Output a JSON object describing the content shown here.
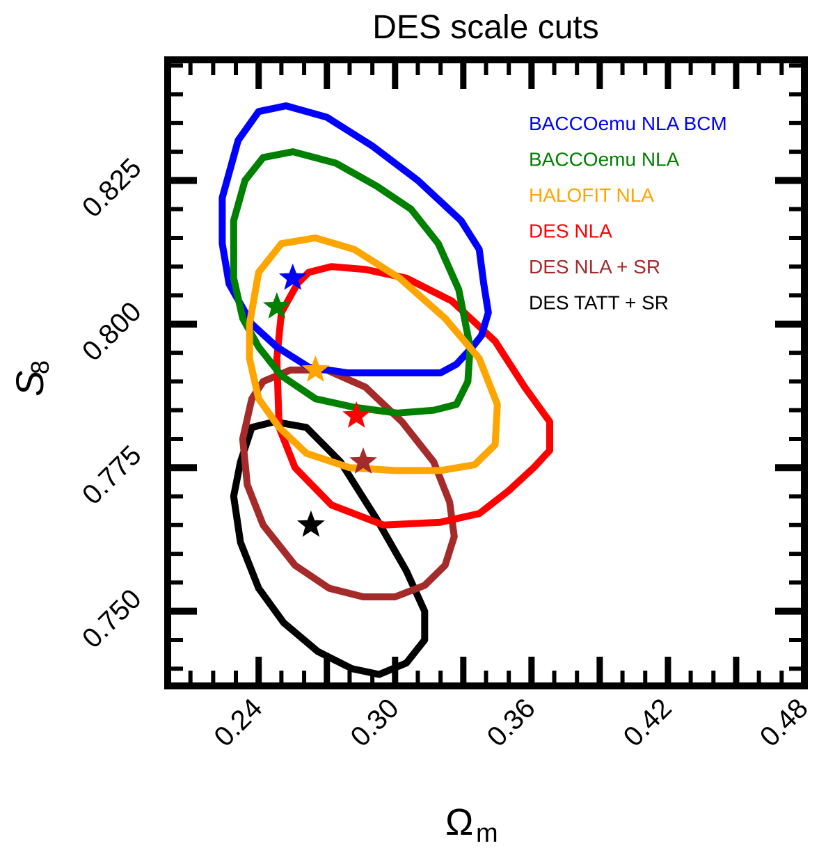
{
  "chart_data": {
    "type": "scatter",
    "title": "DES scale cuts",
    "xlabel": "Ω",
    "xlabel_sub": "m",
    "ylabel": "S",
    "ylabel_sub": "8",
    "xlim": [
      0.2,
      0.48
    ],
    "ylim": [
      0.737,
      0.846
    ],
    "x_ticks": [
      0.24,
      0.3,
      0.36,
      0.42,
      0.48
    ],
    "x_tick_labels": [
      "0.24",
      "0.30",
      "0.36",
      "0.42",
      "0.48"
    ],
    "y_ticks": [
      0.75,
      0.775,
      0.8,
      0.825
    ],
    "y_tick_labels": [
      "0.750",
      "0.775",
      "0.800",
      "0.825"
    ],
    "legend_position": "top-right",
    "grid": false,
    "series": [
      {
        "name": "BACCOemu NLA BCM",
        "color": "#0000ff",
        "best_fit": [
          0.255,
          0.808
        ],
        "contour": [
          [
            0.224,
            0.822
          ],
          [
            0.231,
            0.832
          ],
          [
            0.24,
            0.837
          ],
          [
            0.252,
            0.838
          ],
          [
            0.27,
            0.836
          ],
          [
            0.29,
            0.831
          ],
          [
            0.31,
            0.825
          ],
          [
            0.329,
            0.818
          ],
          [
            0.337,
            0.813
          ],
          [
            0.339,
            0.807
          ],
          [
            0.341,
            0.802
          ],
          [
            0.338,
            0.798
          ],
          [
            0.334,
            0.796
          ],
          [
            0.327,
            0.793
          ],
          [
            0.32,
            0.7915
          ],
          [
            0.3,
            0.7915
          ],
          [
            0.279,
            0.7915
          ],
          [
            0.262,
            0.7925
          ],
          [
            0.248,
            0.796
          ],
          [
            0.237,
            0.8
          ],
          [
            0.227,
            0.807
          ],
          [
            0.224,
            0.814
          ],
          [
            0.224,
            0.822
          ]
        ]
      },
      {
        "name": "BACCOemu NLA",
        "color": "#008000",
        "best_fit": [
          0.248,
          0.803
        ],
        "contour": [
          [
            0.229,
            0.818
          ],
          [
            0.234,
            0.825
          ],
          [
            0.242,
            0.829
          ],
          [
            0.255,
            0.83
          ],
          [
            0.274,
            0.828
          ],
          [
            0.292,
            0.824
          ],
          [
            0.307,
            0.82
          ],
          [
            0.319,
            0.814
          ],
          [
            0.328,
            0.806
          ],
          [
            0.333,
            0.796
          ],
          [
            0.332,
            0.79
          ],
          [
            0.327,
            0.786
          ],
          [
            0.317,
            0.785
          ],
          [
            0.301,
            0.7845
          ],
          [
            0.282,
            0.7855
          ],
          [
            0.265,
            0.787
          ],
          [
            0.25,
            0.791
          ],
          [
            0.24,
            0.796
          ],
          [
            0.233,
            0.801
          ],
          [
            0.229,
            0.808
          ],
          [
            0.229,
            0.818
          ]
        ]
      },
      {
        "name": "HALOFIT NLA",
        "color": "#ffa500",
        "best_fit": [
          0.265,
          0.792
        ],
        "contour": [
          [
            0.236,
            0.8
          ],
          [
            0.24,
            0.809
          ],
          [
            0.25,
            0.814
          ],
          [
            0.265,
            0.815
          ],
          [
            0.282,
            0.813
          ],
          [
            0.302,
            0.808
          ],
          [
            0.322,
            0.801
          ],
          [
            0.337,
            0.794
          ],
          [
            0.345,
            0.786
          ],
          [
            0.344,
            0.779
          ],
          [
            0.335,
            0.7755
          ],
          [
            0.32,
            0.7745
          ],
          [
            0.3,
            0.7745
          ],
          [
            0.28,
            0.775
          ],
          [
            0.261,
            0.7775
          ],
          [
            0.249,
            0.782
          ],
          [
            0.24,
            0.787
          ],
          [
            0.236,
            0.794
          ],
          [
            0.236,
            0.8
          ]
        ]
      },
      {
        "name": "DES NLA",
        "color": "#ff0000",
        "best_fit": [
          0.283,
          0.784
        ],
        "contour": [
          [
            0.257,
            0.807
          ],
          [
            0.262,
            0.809
          ],
          [
            0.272,
            0.81
          ],
          [
            0.287,
            0.8095
          ],
          [
            0.305,
            0.808
          ],
          [
            0.325,
            0.804
          ],
          [
            0.344,
            0.797
          ],
          [
            0.357,
            0.789
          ],
          [
            0.368,
            0.783
          ],
          [
            0.368,
            0.778
          ],
          [
            0.361,
            0.775
          ],
          [
            0.35,
            0.771
          ],
          [
            0.337,
            0.767
          ],
          [
            0.32,
            0.7655
          ],
          [
            0.295,
            0.765
          ],
          [
            0.272,
            0.7685
          ],
          [
            0.256,
            0.775
          ],
          [
            0.249,
            0.782
          ],
          [
            0.248,
            0.794
          ],
          [
            0.25,
            0.802
          ],
          [
            0.257,
            0.807
          ]
        ]
      },
      {
        "name": "DES NLA + SR",
        "color": "#a52a2a",
        "best_fit": [
          0.286,
          0.776
        ],
        "contour": [
          [
            0.237,
            0.787
          ],
          [
            0.242,
            0.79
          ],
          [
            0.254,
            0.792
          ],
          [
            0.27,
            0.792
          ],
          [
            0.287,
            0.789
          ],
          [
            0.303,
            0.783
          ],
          [
            0.317,
            0.776
          ],
          [
            0.324,
            0.769
          ],
          [
            0.326,
            0.763
          ],
          [
            0.322,
            0.758
          ],
          [
            0.313,
            0.7545
          ],
          [
            0.3,
            0.7525
          ],
          [
            0.286,
            0.7525
          ],
          [
            0.271,
            0.754
          ],
          [
            0.256,
            0.758
          ],
          [
            0.242,
            0.765
          ],
          [
            0.235,
            0.772
          ],
          [
            0.233,
            0.78
          ],
          [
            0.237,
            0.787
          ]
        ]
      },
      {
        "name": "DES TATT + SR",
        "color": "#000000",
        "best_fit": [
          0.263,
          0.765
        ],
        "contour": [
          [
            0.232,
            0.776
          ],
          [
            0.237,
            0.782
          ],
          [
            0.247,
            0.783
          ],
          [
            0.261,
            0.782
          ],
          [
            0.276,
            0.776
          ],
          [
            0.292,
            0.766
          ],
          [
            0.305,
            0.757
          ],
          [
            0.313,
            0.75
          ],
          [
            0.313,
            0.745
          ],
          [
            0.305,
            0.741
          ],
          [
            0.293,
            0.739
          ],
          [
            0.281,
            0.74
          ],
          [
            0.266,
            0.743
          ],
          [
            0.251,
            0.748
          ],
          [
            0.24,
            0.754
          ],
          [
            0.232,
            0.762
          ],
          [
            0.229,
            0.77
          ],
          [
            0.232,
            0.776
          ]
        ]
      }
    ]
  }
}
